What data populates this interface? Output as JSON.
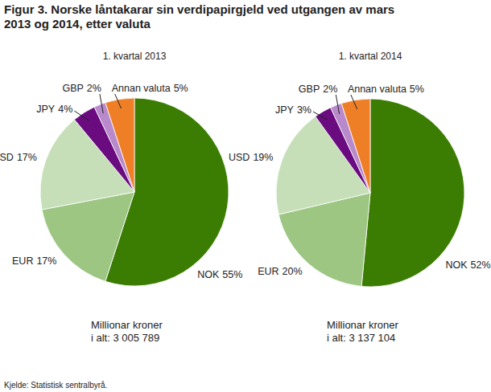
{
  "title": [
    "Figur 3. Norske låntakarar sin verdipapirgjeld ved utgangen av mars",
    "2013 og 2014, etter valuta"
  ],
  "source": "Kjelde: Statistisk sentralbyrå.",
  "chart_data": [
    {
      "type": "pie",
      "subtitle": "1. kvartal 2013",
      "categories": [
        "NOK",
        "EUR",
        "USD",
        "JPY",
        "GBP",
        "Annan valuta"
      ],
      "values": [
        55,
        17,
        17,
        4,
        2,
        5
      ],
      "value_labels": [
        "55%",
        "17%",
        "17%",
        "4%",
        "2%",
        "5%"
      ],
      "colors": [
        "#3b7d02",
        "#9dc683",
        "#c6dfb8",
        "#6a0b80",
        "#b98acb",
        "#ef7f27"
      ],
      "data_labels": true,
      "annotations": [
        "Millionar kroner",
        "i alt: 3 005 789"
      ]
    },
    {
      "type": "pie",
      "subtitle": "1. kvartal 2014",
      "categories": [
        "NOK",
        "EUR",
        "USD",
        "JPY",
        "GBP",
        "Annan valuta"
      ],
      "values": [
        52,
        20,
        19,
        3,
        2,
        5
      ],
      "value_labels": [
        "52%",
        "20%",
        "19%",
        "3%",
        "2%",
        "5%"
      ],
      "colors": [
        "#3b7d02",
        "#9dc683",
        "#c6dfb8",
        "#6a0b80",
        "#b98acb",
        "#ef7f27"
      ],
      "data_labels": true,
      "annotations": [
        "Millionar kroner",
        "i alt: 3 137 104"
      ]
    }
  ]
}
